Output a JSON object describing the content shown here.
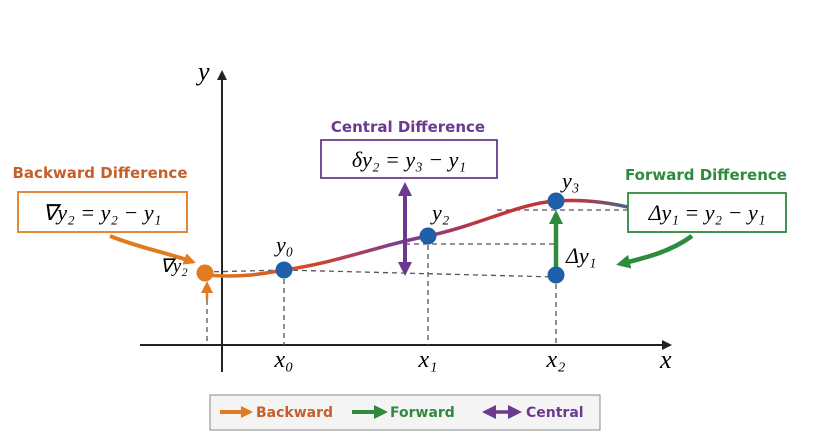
{
  "axes": {
    "x": "x",
    "y": "y"
  },
  "x_labels": [
    "x₀",
    "x₁",
    "x₂"
  ],
  "point_labels": [
    "y₀",
    "y₂",
    "y₃"
  ],
  "backward": {
    "title": "Backward Difference",
    "formula": "∇y₂ = y₂ − y₁",
    "marker": "∇y₂"
  },
  "central": {
    "title": "Central Difference",
    "formula": "δy₂ = y₃ − y₁"
  },
  "forward": {
    "title": "Forward Difference",
    "formula": "Δy₁ = y₂ − y₁",
    "marker": "Δy₁"
  },
  "legend": [
    "Backward",
    "Forward",
    "Central"
  ]
}
